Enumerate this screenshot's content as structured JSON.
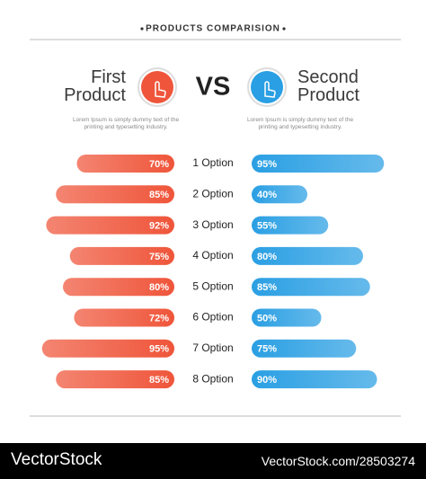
{
  "chart_data": {
    "type": "butterfly",
    "title": "PRODUCTS COMPARISION",
    "vs_label": "VS",
    "categories": [
      "1 Option",
      "2 Option",
      "3 Option",
      "4 Option",
      "5 Option",
      "6 Option",
      "7 Option",
      "8 Option"
    ],
    "series": [
      {
        "name": "First Product",
        "color": "#ef553a",
        "description": "Lorem Ipsum is simply dummy text of the printing and typesetting industry.",
        "values": [
          70,
          85,
          92,
          75,
          80,
          72,
          95,
          85
        ],
        "value_labels": [
          "70%",
          "85%",
          "92%",
          "75%",
          "80%",
          "72%",
          "95%",
          "85%"
        ]
      },
      {
        "name": "Second Product",
        "color": "#2a9fe3",
        "description": "Lorem Ipsum is simply dummy text of the printing and typesetting industry.",
        "values": [
          95,
          40,
          55,
          80,
          85,
          50,
          75,
          90
        ],
        "value_labels": [
          "95%",
          "40%",
          "55%",
          "80%",
          "85%",
          "50%",
          "75%",
          "90%"
        ]
      }
    ]
  },
  "watermark": {
    "brand": "VectorStock",
    "url": "VectorStock.com/28503274"
  }
}
